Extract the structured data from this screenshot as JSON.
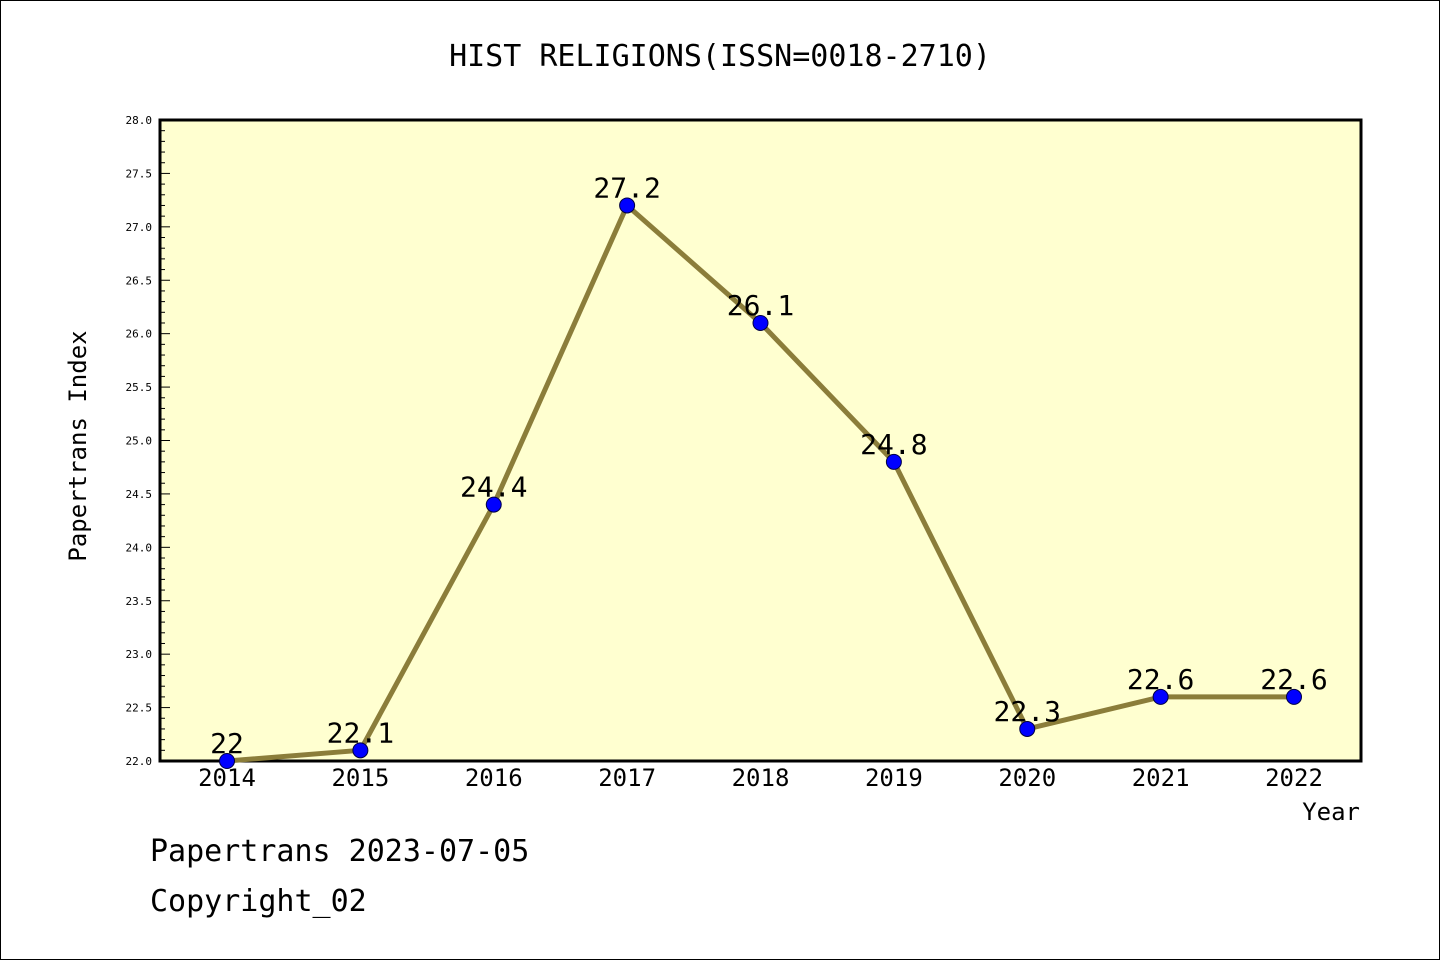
{
  "chart_data": {
    "type": "line",
    "title": "HIST RELIGIONS(ISSN=0018-2710)",
    "xlabel": "Year",
    "ylabel": "Papertrans Index",
    "categories": [
      "2014",
      "2015",
      "2016",
      "2017",
      "2018",
      "2019",
      "2020",
      "2021",
      "2022"
    ],
    "values": [
      22,
      22.1,
      24.4,
      27.2,
      26.1,
      24.8,
      22.3,
      22.6,
      22.6
    ],
    "data_labels": [
      "22",
      "22.1",
      "24.4",
      "27.2",
      "26.1",
      "24.8",
      "22.3",
      "22.6",
      "22.6"
    ],
    "ylim": [
      22.0,
      28.0
    ],
    "yticks": [
      "22.0",
      "22.5",
      "23.0",
      "23.5",
      "24.0",
      "24.5",
      "25.0",
      "25.5",
      "26.0",
      "26.5",
      "27.0",
      "27.5",
      "28.0"
    ],
    "grid": false,
    "colors": {
      "plot_background": "#ffffd0",
      "line": "#8b7d3a",
      "marker": "#0000ff"
    }
  },
  "footer": {
    "date_line": "Papertrans 2023-07-05",
    "copyright": "Copyright_02"
  }
}
